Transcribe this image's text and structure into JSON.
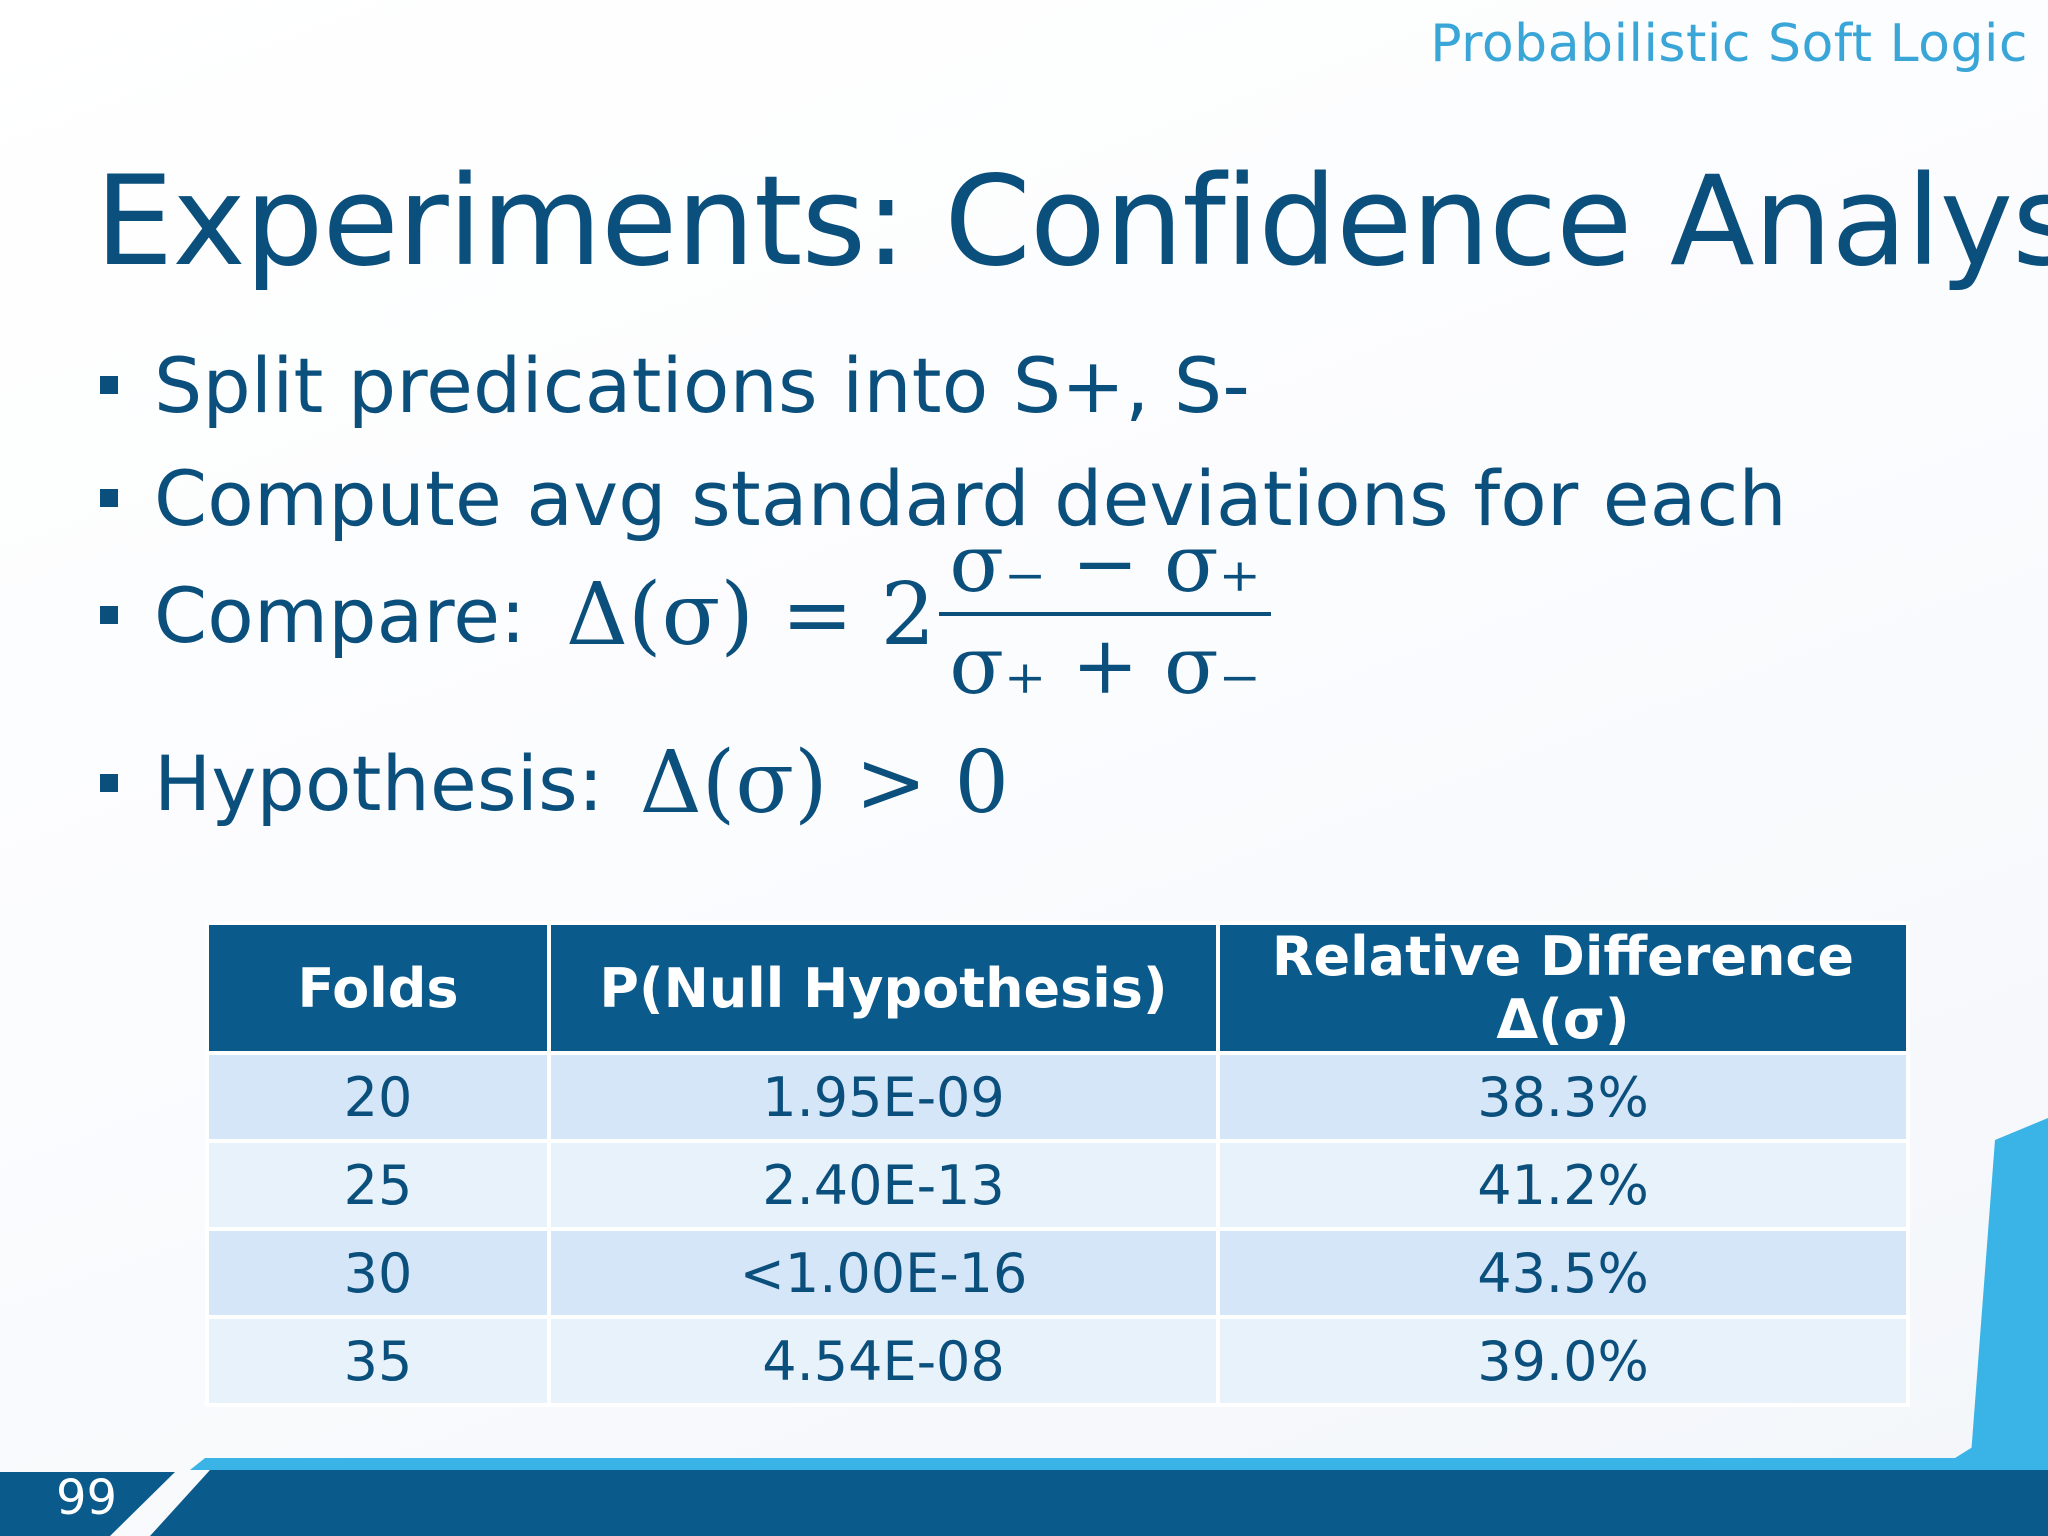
{
  "header": {
    "brand": "Probabilistic Soft Logic",
    "title": "Experiments: Confidence Analysis"
  },
  "bullets": [
    {
      "text": "Split predications into S+, S-"
    },
    {
      "text": "Compute avg standard deviations for each"
    },
    {
      "text": "Compare:"
    },
    {
      "text": "Hypothesis:"
    }
  ],
  "math": {
    "compare_lhs": "Δ(σ) = 2",
    "numerator": "σ₋ − σ₊",
    "denominator": "σ₊ + σ₋",
    "hypothesis": "Δ(σ) > 0"
  },
  "table": {
    "headers": [
      "Folds",
      "P(Null Hypothesis)",
      "Relative Difference Δ(σ)"
    ],
    "rows": [
      [
        "20",
        "1.95E-09",
        "38.3%"
      ],
      [
        "25",
        "2.40E-13",
        "41.2%"
      ],
      [
        "30",
        "<1.00E-16",
        "43.5%"
      ],
      [
        "35",
        "4.54E-08",
        "39.0%"
      ]
    ]
  },
  "footer": {
    "page_number": "99"
  },
  "colors": {
    "title": "#0b4f7d",
    "brand": "#3aa6d8",
    "table_header": "#0a5a8c",
    "row_odd": "#d4e6f7",
    "row_even": "#e8f2fb",
    "footer_dark": "#0a5a8c",
    "footer_light": "#3ab4e6"
  }
}
